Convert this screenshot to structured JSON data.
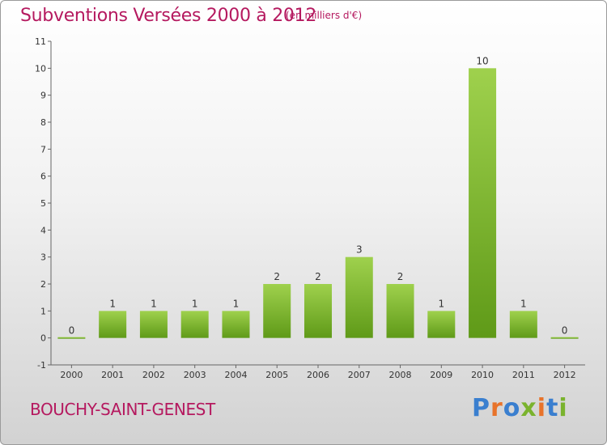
{
  "header": {
    "title": "Subventions Versées 2000 à 2012",
    "subtitle": "(en milliers d'€)"
  },
  "footer": {
    "commune": "BOUCHY-SAINT-GENEST",
    "logo": "Proxiti"
  },
  "colors": {
    "accent": "#b5195f",
    "bar_light": "#9fd14d",
    "bar_dark": "#5f9a18",
    "logo_letters": [
      "#3a7fcf",
      "#e8732a",
      "#3a7fcf",
      "#7ab32e",
      "#e8732a",
      "#3a7fcf",
      "#7ab32e"
    ]
  },
  "chart_data": {
    "type": "bar",
    "categories": [
      "2000",
      "2001",
      "2002",
      "2003",
      "2004",
      "2005",
      "2006",
      "2007",
      "2008",
      "2009",
      "2010",
      "2011",
      "2012"
    ],
    "values": [
      0,
      1,
      1,
      1,
      1,
      2,
      2,
      3,
      2,
      1,
      10,
      1,
      0
    ],
    "data_labels": [
      "0",
      "1",
      "1",
      "1",
      "1",
      "2",
      "2",
      "3",
      "2",
      "1",
      "10",
      "1",
      "0"
    ],
    "yticks": [
      -1,
      0,
      1,
      2,
      3,
      4,
      5,
      6,
      7,
      8,
      9,
      10,
      11
    ],
    "ytick_labels": [
      "-1",
      "0",
      "1",
      "2",
      "3",
      "4",
      "5",
      "6",
      "7",
      "8",
      "9",
      "10",
      "11"
    ],
    "ylim": [
      -1,
      11
    ],
    "xlabel": "",
    "ylabel": "",
    "grid": false,
    "legend": "none"
  }
}
